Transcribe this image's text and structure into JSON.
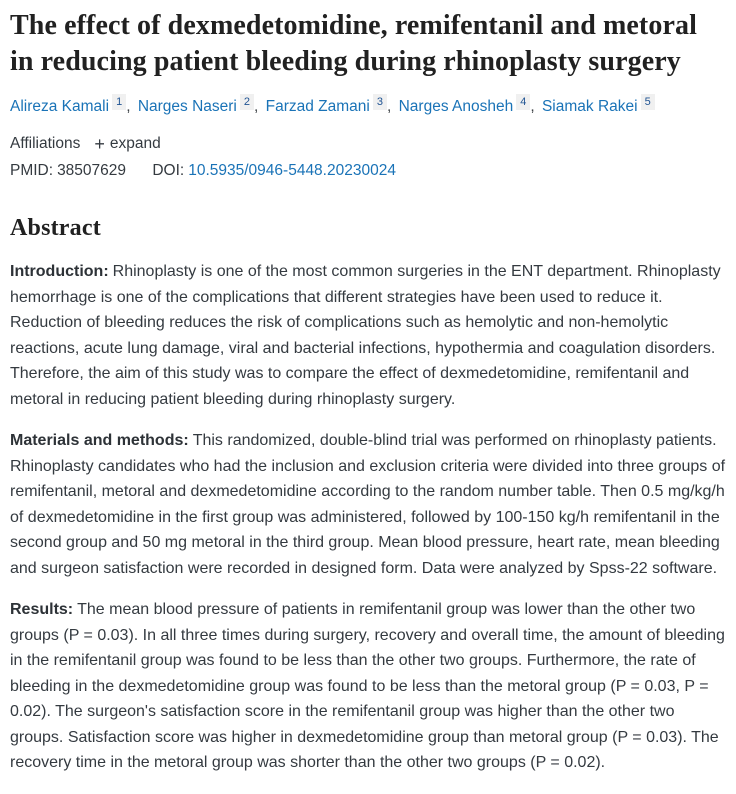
{
  "title": "The effect of dexmedetomidine, remifentanil and metoral in reducing patient bleeding during rhinoplasty surgery",
  "authors": [
    {
      "name": "Alireza Kamali",
      "sup": "1"
    },
    {
      "name": "Narges Naseri",
      "sup": "2"
    },
    {
      "name": "Farzad Zamani",
      "sup": "3"
    },
    {
      "name": "Narges Anosheh",
      "sup": "4"
    },
    {
      "name": "Siamak Rakei",
      "sup": "5"
    }
  ],
  "authors_separator": ",",
  "affiliations": {
    "label": "Affiliations",
    "expand_icon": "+",
    "expand_label": "expand"
  },
  "identifiers": {
    "pmid_label": "PMID:",
    "pmid_value": "38507629",
    "doi_label": "DOI:",
    "doi_value": "10.5935/0946-5448.20230024"
  },
  "abstract": {
    "heading": "Abstract",
    "sections": [
      {
        "label": "Introduction:",
        "text": "Rhinoplasty is one of the most common surgeries in the ENT department. Rhinoplasty hemorrhage is one of the complications that different strategies have been used to reduce it. Reduction of bleeding reduces the risk of complications such as hemolytic and non-hemolytic reactions, acute lung damage, viral and bacterial infections, hypothermia and coagulation disorders. Therefore, the aim of this study was to compare the effect of dexmedetomidine, remifentanil and metoral in reducing patient bleeding during rhinoplasty surgery."
      },
      {
        "label": "Materials and methods:",
        "text": "This randomized, double-blind trial was performed on rhinoplasty patients. Rhinoplasty candidates who had the inclusion and exclusion criteria were divided into three groups of remifentanil, metoral and dexmedetomidine according to the random number table. Then 0.5 mg/kg/h of dexmedetomidine in the first group was administered, followed by 100-150 kg/h remifentanil in the second group and 50 mg metoral in the third group. Mean blood pressure, heart rate, mean bleeding and surgeon satisfaction were recorded in designed form. Data were analyzed by Spss-22 software."
      },
      {
        "label": "Results:",
        "text": "The mean blood pressure of patients in remifentanil group was lower than the other two groups (P = 0.03). In all three times during surgery, recovery and overall time, the amount of bleeding in the remifentanil group was found to be less than the other two groups. Furthermore, the rate of bleeding in the dexmedetomidine group was found to be less than the metoral group (P = 0.03, P = 0.02). The surgeon's satisfaction score in the remifentanil group was higher than the other two groups. Satisfaction score was higher in dexmedetomidine group than metoral group (P = 0.03). The recovery time in the metoral group was shorter than the other two groups (P = 0.02)."
      }
    ]
  },
  "colors": {
    "link_blue": "#1a73b7",
    "body_text": "#343a40",
    "heading_text": "#212121",
    "sup_badge_bg": "#f0f0f0",
    "sup_badge_text": "#205493"
  }
}
